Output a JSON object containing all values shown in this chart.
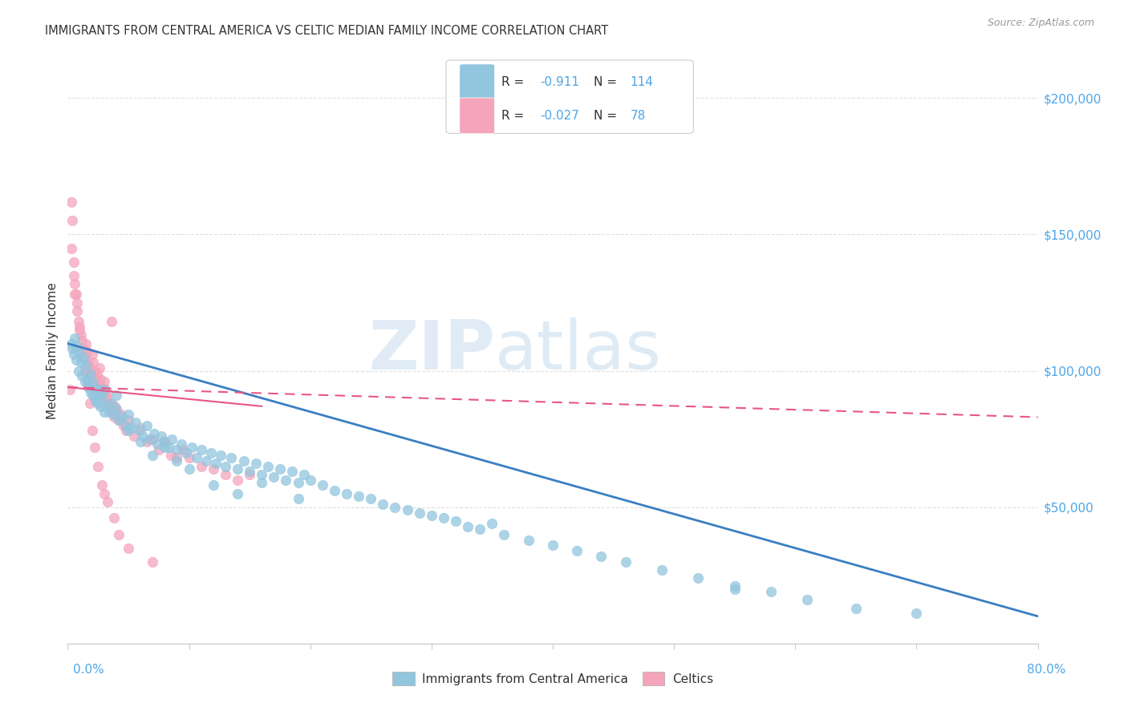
{
  "title": "IMMIGRANTS FROM CENTRAL AMERICA VS CELTIC MEDIAN FAMILY INCOME CORRELATION CHART",
  "source": "Source: ZipAtlas.com",
  "ylabel": "Median Family Income",
  "right_yticks": [
    0,
    50000,
    100000,
    150000,
    200000
  ],
  "right_ytick_labels": [
    "",
    "$50,000",
    "$100,000",
    "$150,000",
    "$200,000"
  ],
  "xlim": [
    0.0,
    0.8
  ],
  "ylim": [
    0,
    215000
  ],
  "watermark_zip": "ZIP",
  "watermark_atlas": "atlas",
  "blue_color": "#92c5de",
  "pink_color": "#f4a5bb",
  "blue_line_color": "#3a7fc1",
  "pink_line_color": "#e8558a",
  "title_color": "#333333",
  "source_color": "#999999",
  "axis_tick_color": "#4da6e8",
  "legend_r_color": "#4da6e8",
  "legend_label_color": "#333333",
  "grid_color": "#e0e0e0",
  "background_color": "#ffffff",
  "blue_trend_x": [
    0.0,
    0.8
  ],
  "blue_trend_y": [
    110000,
    10000
  ],
  "pink_trend_x": [
    0.0,
    0.16
  ],
  "pink_trend_y": [
    94000,
    87000
  ],
  "pink_dash_trend_x": [
    0.0,
    0.8
  ],
  "pink_dash_trend_y": [
    94000,
    83000
  ],
  "blue_scatter_x": [
    0.003,
    0.004,
    0.005,
    0.006,
    0.007,
    0.008,
    0.009,
    0.01,
    0.011,
    0.012,
    0.013,
    0.014,
    0.015,
    0.016,
    0.017,
    0.018,
    0.019,
    0.02,
    0.021,
    0.022,
    0.023,
    0.024,
    0.025,
    0.026,
    0.027,
    0.028,
    0.03,
    0.032,
    0.034,
    0.036,
    0.038,
    0.04,
    0.042,
    0.045,
    0.048,
    0.05,
    0.053,
    0.056,
    0.059,
    0.062,
    0.065,
    0.068,
    0.071,
    0.074,
    0.077,
    0.08,
    0.083,
    0.086,
    0.09,
    0.094,
    0.098,
    0.102,
    0.106,
    0.11,
    0.114,
    0.118,
    0.122,
    0.126,
    0.13,
    0.135,
    0.14,
    0.145,
    0.15,
    0.155,
    0.16,
    0.165,
    0.17,
    0.175,
    0.18,
    0.185,
    0.19,
    0.195,
    0.2,
    0.21,
    0.22,
    0.23,
    0.24,
    0.25,
    0.26,
    0.27,
    0.28,
    0.29,
    0.3,
    0.31,
    0.32,
    0.33,
    0.34,
    0.36,
    0.38,
    0.4,
    0.42,
    0.44,
    0.46,
    0.49,
    0.52,
    0.55,
    0.58,
    0.61,
    0.65,
    0.7,
    0.03,
    0.04,
    0.05,
    0.06,
    0.07,
    0.08,
    0.09,
    0.1,
    0.12,
    0.14,
    0.16,
    0.19,
    0.35,
    0.55
  ],
  "blue_scatter_y": [
    110000,
    108000,
    106000,
    112000,
    104000,
    109000,
    100000,
    107000,
    103000,
    98000,
    105000,
    96000,
    102000,
    97000,
    94000,
    99000,
    92000,
    96000,
    91000,
    94000,
    89000,
    93000,
    88000,
    91000,
    87000,
    90000,
    93000,
    87000,
    85000,
    88000,
    84000,
    86000,
    82000,
    83000,
    80000,
    84000,
    79000,
    81000,
    78000,
    76000,
    80000,
    75000,
    77000,
    73000,
    76000,
    74000,
    72000,
    75000,
    71000,
    73000,
    70000,
    72000,
    68000,
    71000,
    67000,
    70000,
    66000,
    69000,
    65000,
    68000,
    64000,
    67000,
    63000,
    66000,
    62000,
    65000,
    61000,
    64000,
    60000,
    63000,
    59000,
    62000,
    60000,
    58000,
    56000,
    55000,
    54000,
    53000,
    51000,
    50000,
    49000,
    48000,
    47000,
    46000,
    45000,
    43000,
    42000,
    40000,
    38000,
    36000,
    34000,
    32000,
    30000,
    27000,
    24000,
    21000,
    19000,
    16000,
    13000,
    11000,
    85000,
    91000,
    78000,
    74000,
    69000,
    72000,
    67000,
    64000,
    58000,
    55000,
    59000,
    53000,
    44000,
    20000
  ],
  "pink_scatter_x": [
    0.002,
    0.003,
    0.004,
    0.005,
    0.006,
    0.007,
    0.008,
    0.009,
    0.01,
    0.011,
    0.012,
    0.013,
    0.014,
    0.015,
    0.016,
    0.017,
    0.018,
    0.019,
    0.02,
    0.021,
    0.022,
    0.023,
    0.024,
    0.025,
    0.026,
    0.027,
    0.028,
    0.029,
    0.03,
    0.031,
    0.032,
    0.033,
    0.034,
    0.035,
    0.036,
    0.037,
    0.038,
    0.039,
    0.04,
    0.042,
    0.044,
    0.046,
    0.048,
    0.05,
    0.055,
    0.06,
    0.065,
    0.07,
    0.075,
    0.08,
    0.085,
    0.09,
    0.095,
    0.1,
    0.11,
    0.12,
    0.13,
    0.14,
    0.15,
    0.003,
    0.005,
    0.006,
    0.008,
    0.01,
    0.012,
    0.014,
    0.016,
    0.018,
    0.02,
    0.022,
    0.025,
    0.028,
    0.03,
    0.033,
    0.038,
    0.042,
    0.05,
    0.07
  ],
  "pink_scatter_y": [
    93000,
    145000,
    155000,
    140000,
    132000,
    128000,
    125000,
    118000,
    116000,
    113000,
    111000,
    108000,
    105000,
    110000,
    107000,
    103000,
    101000,
    98000,
    106000,
    103000,
    100000,
    97000,
    99000,
    95000,
    101000,
    97000,
    94000,
    92000,
    96000,
    93000,
    90000,
    92000,
    88000,
    86000,
    118000,
    85000,
    83000,
    87000,
    85000,
    82000,
    84000,
    80000,
    78000,
    82000,
    76000,
    79000,
    74000,
    75000,
    71000,
    74000,
    69000,
    68000,
    71000,
    68000,
    65000,
    64000,
    62000,
    60000,
    62000,
    162000,
    135000,
    128000,
    122000,
    115000,
    106000,
    100000,
    95000,
    88000,
    78000,
    72000,
    65000,
    58000,
    55000,
    52000,
    46000,
    40000,
    35000,
    30000
  ]
}
